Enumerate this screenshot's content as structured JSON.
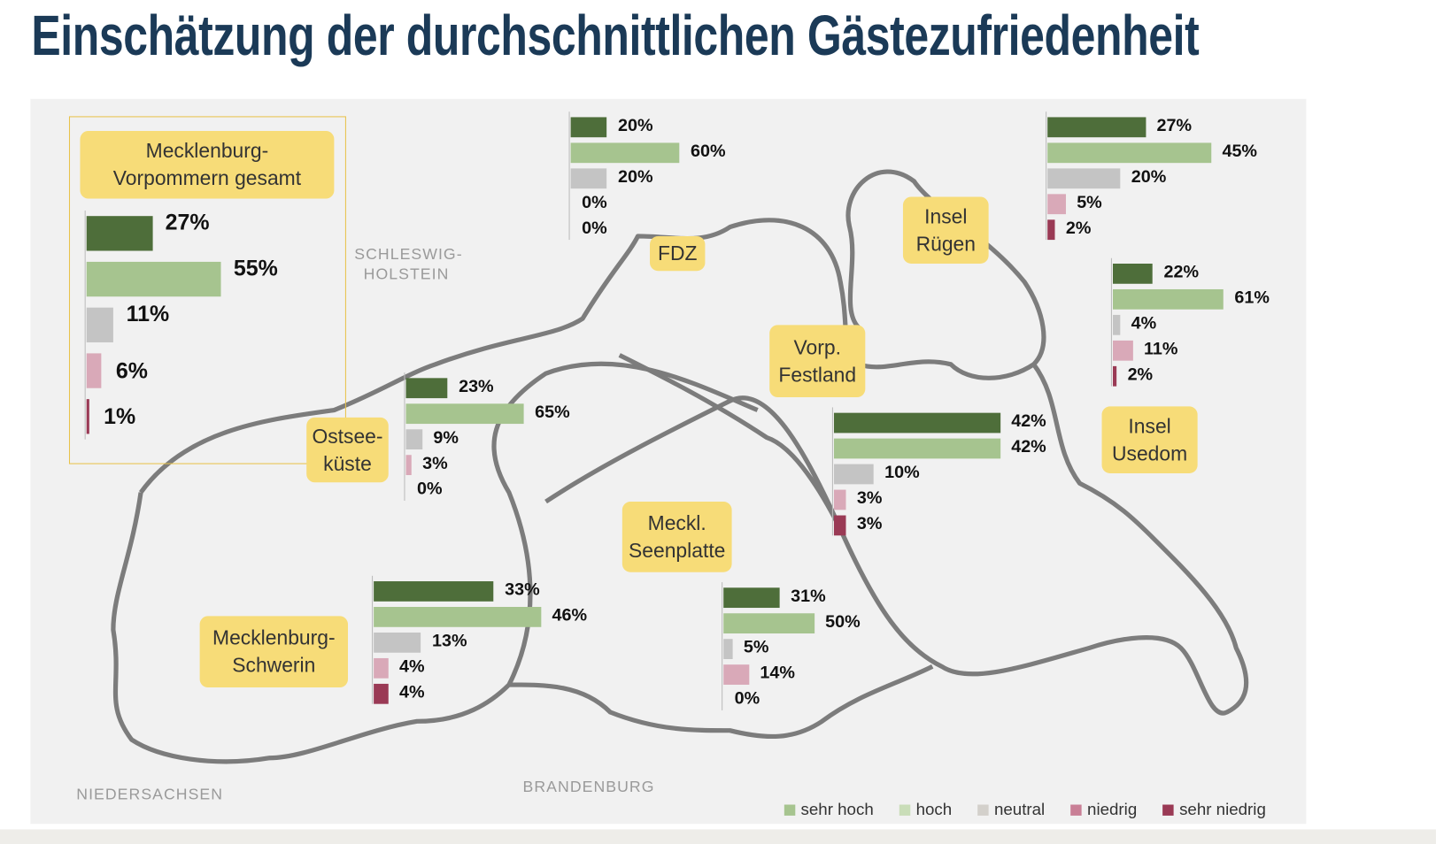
{
  "title": "Einschätzung der durchschnittlichen Gästezufriedenheit",
  "map_labels": {
    "schleswig": "SCHLESWIG-",
    "holstein": "HOLSTEIN",
    "niedersachsen": "NIEDERSACHSEN",
    "brandenburg": "BRANDENBURG"
  },
  "chart_data": {
    "type": "bar",
    "title": "Einschätzung der durchschnittlichen Gästezufriedenheit",
    "categories": [
      "sehr hoch",
      "hoch",
      "neutral",
      "niedrig",
      "sehr niedrig"
    ],
    "colors": [
      "#4e6e3a",
      "#a6c48f",
      "#c4c4c4",
      "#d9a9b8",
      "#9a3a55"
    ],
    "legend_colors": [
      "#a6c48f",
      "#c9ddb8",
      "#d3d0cb",
      "#c97f96",
      "#9a3a55"
    ],
    "legend_position": "bottom-right",
    "unit": "%",
    "regions": [
      {
        "name": "Mecklenburg-Vorpommern gesamt",
        "label": "Mecklenburg-Vorpommern gesamt",
        "values": [
          27,
          55,
          11,
          6,
          1
        ]
      },
      {
        "name": "FDZ",
        "label": "FDZ",
        "values": [
          20,
          60,
          20,
          0,
          0
        ]
      },
      {
        "name": "Insel Rügen",
        "label": "Insel Rügen",
        "values": [
          27,
          45,
          20,
          5,
          2
        ]
      },
      {
        "name": "Insel Usedom",
        "label": "Insel Usedom",
        "values": [
          22,
          61,
          4,
          11,
          2
        ]
      },
      {
        "name": "Ostseeküste",
        "label": "Ostsee-küste",
        "values": [
          23,
          65,
          9,
          3,
          0
        ]
      },
      {
        "name": "Vorp. Festland",
        "label": "Vorp. Festland",
        "values": [
          42,
          42,
          10,
          3,
          3
        ]
      },
      {
        "name": "Mecklenburg-Schwerin",
        "label": "Mecklenburg-Schwerin",
        "values": [
          33,
          46,
          13,
          4,
          4
        ]
      },
      {
        "name": "Meckl. Seenplatte",
        "label": "Meckl. Seenplatte",
        "values": [
          31,
          50,
          5,
          14,
          0
        ]
      }
    ]
  }
}
